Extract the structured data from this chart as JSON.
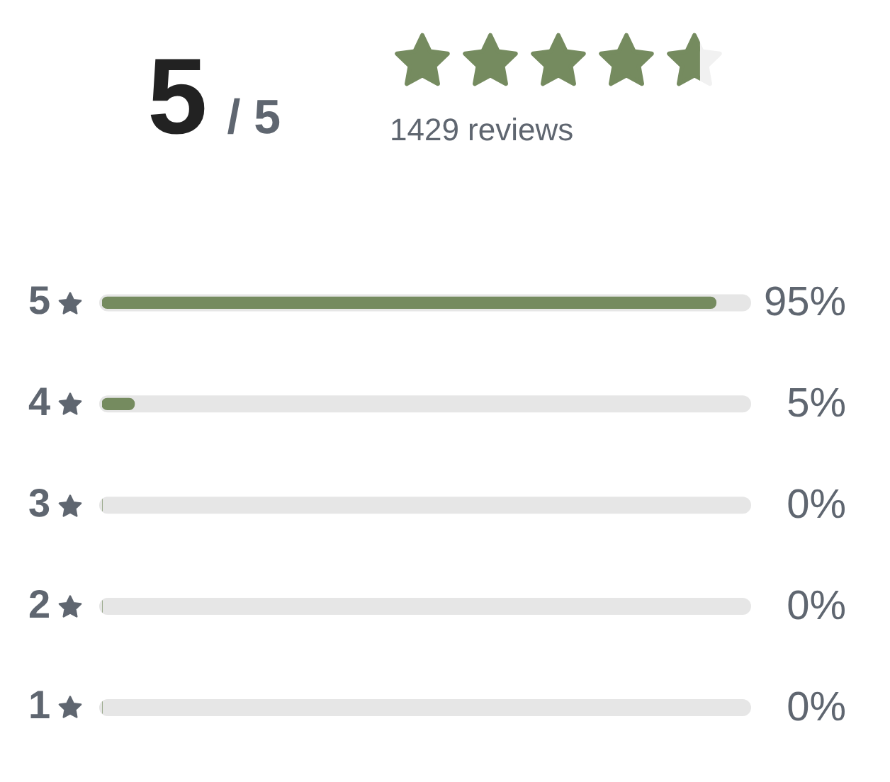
{
  "chart_data": {
    "type": "bar",
    "orientation": "horizontal",
    "title": "5 / 5",
    "subtitle": "1429 reviews",
    "categories": [
      "5",
      "4",
      "3",
      "2",
      "1"
    ],
    "values": [
      95,
      5,
      0,
      0,
      0
    ],
    "color": "#758b5f",
    "value_labels": [
      "95%",
      "5%",
      "0%",
      "0%",
      "0%"
    ],
    "xlim": [
      0,
      100
    ],
    "tick_labels": "y"
  }
}
